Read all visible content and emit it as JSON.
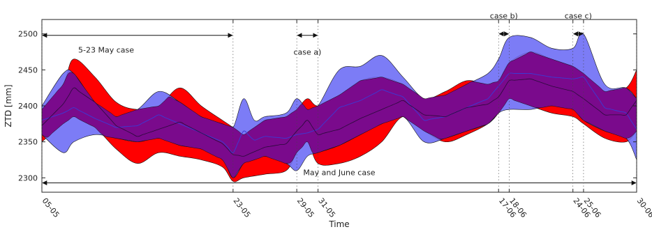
{
  "chart_data": {
    "type": "area",
    "xlabel": "Time",
    "ylabel": "ZTD [mm]",
    "xlim": [
      0,
      56
    ],
    "ylim": [
      2280,
      2520
    ],
    "grid": false,
    "x_ticks": [
      {
        "x": 0,
        "label": "05-05"
      },
      {
        "x": 18,
        "label": "23-05"
      },
      {
        "x": 24,
        "label": "29-05"
      },
      {
        "x": 26,
        "label": "31-05"
      },
      {
        "x": 43,
        "label": "17-06"
      },
      {
        "x": 44,
        "label": "18-06"
      },
      {
        "x": 50,
        "label": "24-06"
      },
      {
        "x": 51,
        "label": "25-06"
      },
      {
        "x": 56,
        "label": "30-06"
      }
    ],
    "y_ticks": [
      2300,
      2350,
      2400,
      2450,
      2500
    ],
    "series": [
      {
        "color": "#ff0000",
        "x": [
          0,
          2,
          3,
          5,
          7,
          9,
          11,
          13,
          15,
          17,
          18,
          19,
          21,
          23,
          24,
          25,
          26,
          28,
          30,
          32,
          34,
          36,
          38,
          40,
          42,
          43,
          44,
          46,
          48,
          50,
          51,
          53,
          55,
          56
        ],
        "upper": [
          2395,
          2430,
          2465,
          2440,
          2405,
          2395,
          2400,
          2425,
          2400,
          2380,
          2370,
          2360,
          2380,
          2385,
          2395,
          2410,
          2400,
          2415,
          2435,
          2440,
          2430,
          2410,
          2420,
          2435,
          2430,
          2435,
          2460,
          2475,
          2465,
          2455,
          2445,
          2420,
          2425,
          2450
        ],
        "lower": [
          2350,
          2375,
          2385,
          2370,
          2340,
          2320,
          2335,
          2330,
          2325,
          2315,
          2295,
          2300,
          2305,
          2310,
          2335,
          2350,
          2320,
          2320,
          2330,
          2350,
          2385,
          2365,
          2350,
          2360,
          2375,
          2390,
          2410,
          2400,
          2390,
          2385,
          2375,
          2355,
          2350,
          2365
        ]
      },
      {
        "color": "#6e6ef5",
        "x": [
          0,
          2,
          3,
          5,
          7,
          9,
          11,
          13,
          15,
          17,
          18,
          19,
          20,
          21,
          23,
          24,
          25,
          26,
          28,
          30,
          32,
          34,
          36,
          38,
          40,
          42,
          43,
          44,
          46,
          48,
          50,
          51,
          53,
          55,
          56
        ],
        "upper": [
          2400,
          2445,
          2445,
          2405,
          2385,
          2395,
          2420,
          2405,
          2385,
          2375,
          2370,
          2410,
          2380,
          2385,
          2390,
          2410,
          2395,
          2400,
          2450,
          2455,
          2470,
          2440,
          2410,
          2415,
          2430,
          2445,
          2465,
          2495,
          2495,
          2480,
          2480,
          2500,
          2430,
          2425,
          2410
        ],
        "lower": [
          2360,
          2335,
          2350,
          2360,
          2355,
          2350,
          2355,
          2345,
          2340,
          2325,
          2300,
          2320,
          2325,
          2330,
          2320,
          2310,
          2330,
          2335,
          2345,
          2360,
          2375,
          2385,
          2350,
          2355,
          2365,
          2375,
          2390,
          2395,
          2395,
          2400,
          2395,
          2380,
          2365,
          2355,
          2325
        ]
      }
    ],
    "annotations": [
      {
        "text": "5-23 May case",
        "x_start": 0,
        "x_end": 18,
        "y": 2498
      },
      {
        "text": "case a)",
        "x_start": 24,
        "x_end": 26,
        "y": 2498
      },
      {
        "text": "case b)",
        "x_start": 43,
        "x_end": 44,
        "y": 2500
      },
      {
        "text": "case c)",
        "x_start": 50,
        "x_end": 51,
        "y": 2500
      },
      {
        "text": "May and June case",
        "x_start": 0,
        "x_end": 56,
        "y": 2293
      }
    ]
  }
}
